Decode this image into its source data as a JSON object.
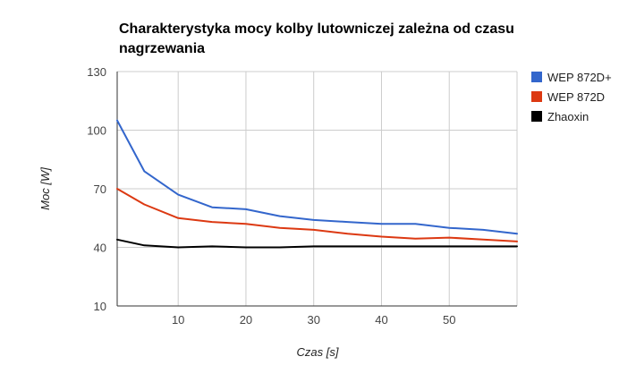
{
  "chart_data": {
    "type": "line",
    "title_lines": [
      "Charakterystyka mocy kolby lutowniczej zależna od czasu",
      "nagrzewania"
    ],
    "xlabel": "Czas [s]",
    "ylabel": "Moc [W]",
    "xlim": [
      1,
      60
    ],
    "ylim": [
      10,
      130
    ],
    "x_ticks": [
      10,
      20,
      30,
      40,
      50
    ],
    "y_ticks": [
      10,
      40,
      70,
      100,
      130
    ],
    "grid": true,
    "legend_position": "right",
    "x": [
      1,
      5,
      10,
      15,
      20,
      25,
      30,
      35,
      40,
      45,
      50,
      55,
      60
    ],
    "series": [
      {
        "name": "WEP 872D+",
        "color": "#3366cc",
        "values": [
          105,
          79,
          67,
          60.5,
          59.5,
          56,
          54,
          53,
          52,
          52,
          50,
          49,
          47
        ]
      },
      {
        "name": "WEP 872D",
        "color": "#dc3912",
        "values": [
          70,
          62,
          55,
          53,
          52,
          50,
          49,
          47,
          45.5,
          44.5,
          45,
          44,
          43
        ]
      },
      {
        "name": "Zhaoxin",
        "color": "#000000",
        "values": [
          44,
          41,
          40,
          40.5,
          40,
          40,
          40.5,
          40.5,
          40.5,
          40.5,
          40.5,
          40.5,
          40.5
        ]
      }
    ]
  }
}
